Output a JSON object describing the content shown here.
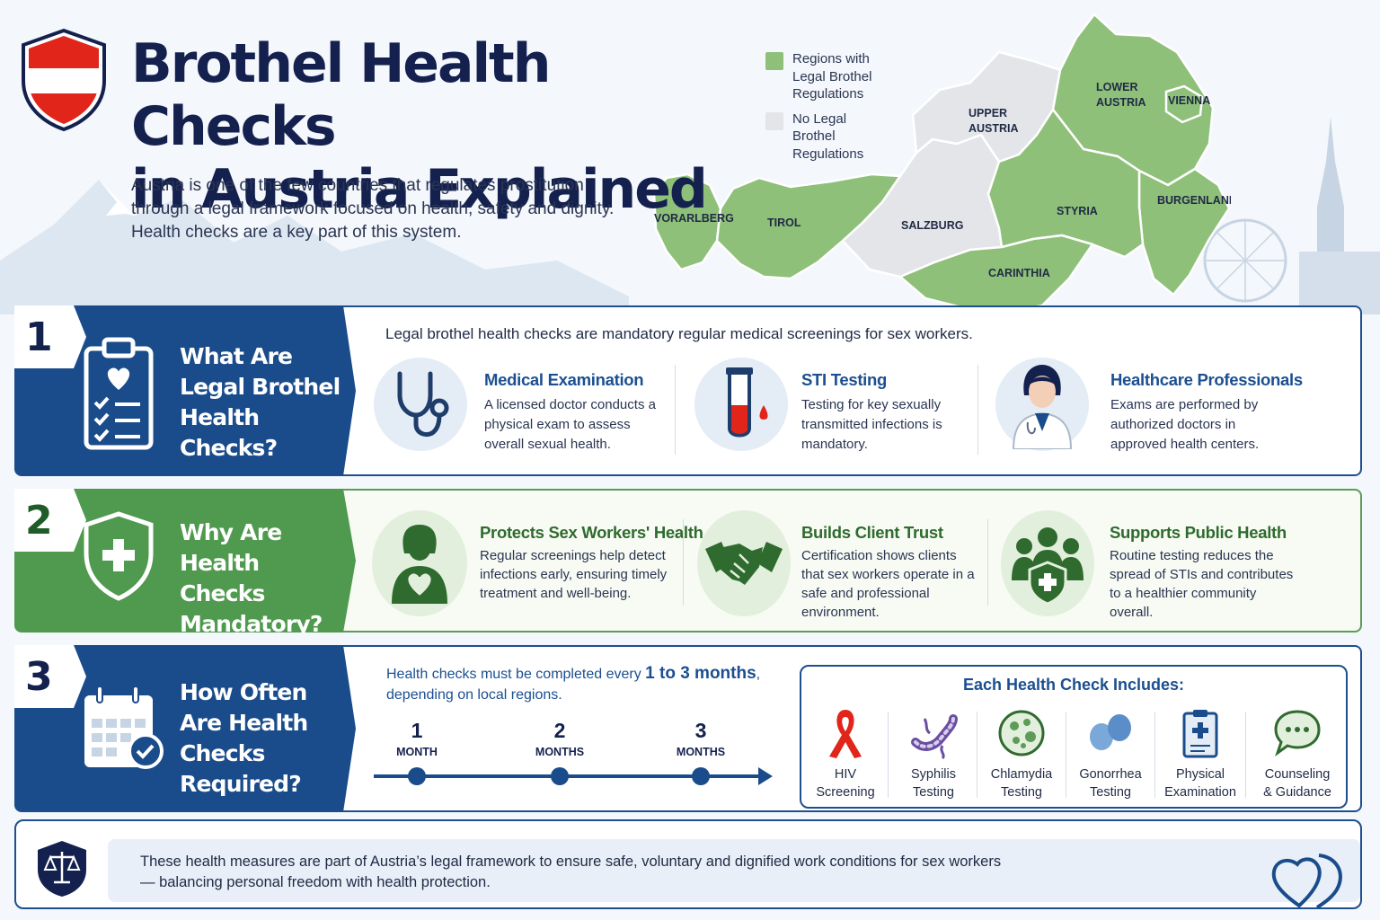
{
  "header": {
    "title_line1": "Brothel Health Checks",
    "title_line2": "in Austria Explained",
    "intro": "Austria is one of the few countries that regulates prostitution through a legal framework focused on health, safety and dignity. Health checks are a key part of this system."
  },
  "legend": {
    "items": [
      {
        "label": "Regions with Legal Brothel Regulations",
        "color": "#8fc07a"
      },
      {
        "label": "No Legal Brothel Regulations",
        "color": "#e3e5e8"
      }
    ]
  },
  "map": {
    "regions": [
      {
        "name": "VORARLBERG",
        "legal": true
      },
      {
        "name": "TIROL",
        "legal": true
      },
      {
        "name": "SALZBURG",
        "legal": false
      },
      {
        "name": "UPPER AUSTRIA",
        "legal": false
      },
      {
        "name": "LOWER AUSTRIA",
        "legal": true
      },
      {
        "name": "VIENNA",
        "legal": true
      },
      {
        "name": "STYRIA",
        "legal": true
      },
      {
        "name": "BURGENLAND",
        "legal": true
      },
      {
        "name": "CARINTHIA",
        "legal": true
      }
    ]
  },
  "sections": [
    {
      "number": "1",
      "heading": "What Are Legal Brothel Health Checks?",
      "lead": "Legal brothel health checks are mandatory regular medical screenings for sex workers.",
      "cards": [
        {
          "icon": "stethoscope-icon",
          "title": "Medical Examination",
          "text": "A licensed doctor conducts a physical exam to assess overall sexual health."
        },
        {
          "icon": "test-tube-icon",
          "title": "STI Testing",
          "text": "Testing for key sexually transmitted infections is mandatory."
        },
        {
          "icon": "doctor-icon",
          "title": "Healthcare Professionals",
          "text": "Exams are performed by authorized doctors in approved health centers."
        }
      ]
    },
    {
      "number": "2",
      "heading": "Why Are Health Checks Mandatory?",
      "cards": [
        {
          "icon": "person-heart-icon",
          "title": "Protects Sex Workers' Health",
          "text": "Regular screenings help detect infections early, ensuring timely treatment and well-being."
        },
        {
          "icon": "handshake-icon",
          "title": "Builds Client Trust",
          "text": "Certification shows clients that sex workers operate in a safe and professional environment."
        },
        {
          "icon": "community-shield-icon",
          "title": "Supports Public Health",
          "text": "Routine testing reduces the spread of STIs and contributes to a healthier community overall."
        }
      ]
    },
    {
      "number": "3",
      "heading": "How Often Are Health Checks Required?",
      "freq_prefix": "Health checks must be completed every ",
      "freq_highlight": "1 to 3 months",
      "freq_suffix": ", depending on local regions.",
      "timeline": [
        {
          "num": "1",
          "unit": "MONTH"
        },
        {
          "num": "2",
          "unit": "MONTHS"
        },
        {
          "num": "3",
          "unit": "MONTHS"
        }
      ],
      "includes_title": "Each Health Check Includes:",
      "includes": [
        {
          "icon": "ribbon-icon",
          "line1": "HIV",
          "line2": "Screening"
        },
        {
          "icon": "bacteria-icon",
          "line1": "Syphilis",
          "line2": "Testing"
        },
        {
          "icon": "microbe-icon",
          "line1": "Chlamydia",
          "line2": "Testing"
        },
        {
          "icon": "cells-icon",
          "line1": "Gonorrhea",
          "line2": "Testing"
        },
        {
          "icon": "clipboard-cross-icon",
          "line1": "Physical",
          "line2": "Examination"
        },
        {
          "icon": "speech-bubble-icon",
          "line1": "Counseling",
          "line2": "& Guidance"
        }
      ]
    }
  ],
  "footer": {
    "text_line1": "These health measures are part of Austria’s legal framework to ensure safe, voluntary and dignified work conditions for sex workers",
    "text_line2": "— balancing personal freedom with health protection."
  },
  "colors": {
    "navy": "#14214f",
    "blue": "#1a4c8b",
    "green": "#4f9a4e",
    "map_green": "#8fc07a",
    "map_grey": "#e3e5e8",
    "austria_red": "#e1251b"
  }
}
